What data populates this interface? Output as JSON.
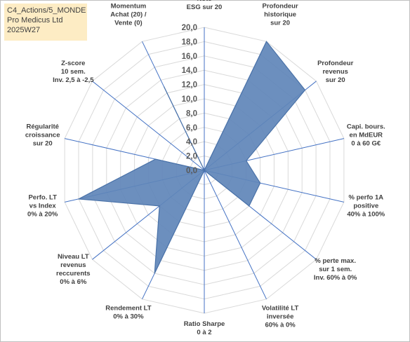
{
  "header": {
    "line1": "C4_Actions/5_MONDE",
    "line2": "Pro Medicus Ltd",
    "line3": "2025W27"
  },
  "chart_data": {
    "type": "radar",
    "title": "",
    "rmin": 0,
    "rmax": 20,
    "tick_step": 2,
    "tick_labels": [
      "0,0",
      "2,0",
      "4,0",
      "6,0",
      "8,0",
      "10,0",
      "12,0",
      "14,0",
      "16,0",
      "18,0",
      "20,0"
    ],
    "grid": true,
    "categories": [
      [
        "Note",
        "ESG sur 20"
      ],
      [
        "Profondeur",
        "historique",
        "sur 20"
      ],
      [
        "Profondeur",
        "revenus",
        "sur 20"
      ],
      [
        "Capi. bours.",
        "en MdEUR",
        "0 à 60 G€"
      ],
      [
        "% perfo 1A",
        "positive",
        "40% à 100%"
      ],
      [
        "% perte max.",
        "sur 1 sem.",
        "Inv. 60% à 0%"
      ],
      [
        "Volatilité LT",
        "inversée",
        "60% à 0%"
      ],
      [
        "Ratio Sharpe",
        "0 à 2"
      ],
      [
        "Rendement LT",
        "0% à 30%"
      ],
      [
        "Niveau LT",
        "revenus",
        "reccurents",
        "0% à 6%"
      ],
      [
        "Perfo. LT",
        "vs Index",
        "0% à 20%"
      ],
      [
        "Régularité",
        "croissance",
        "sur 20"
      ],
      [
        "Z-score",
        "10 sem.",
        "Inv. 2,5 à -2,5"
      ],
      [
        "Momentum",
        "Achat (20) /",
        "Vente (0)"
      ]
    ],
    "series": [
      {
        "values": [
          0,
          20,
          18,
          6,
          8,
          8,
          0,
          0,
          16,
          8,
          18,
          7,
          0,
          13
        ],
        "color": "#5f86b8",
        "edge_color": "#4a72a8"
      }
    ],
    "colors": {
      "grid": "#d9d9d9",
      "axis": "#4472c4"
    }
  }
}
